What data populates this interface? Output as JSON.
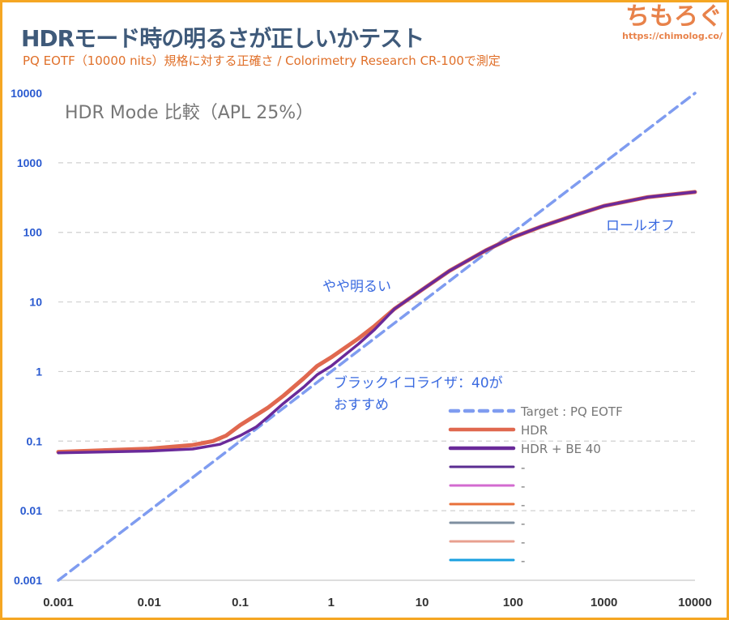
{
  "header": {
    "title": "HDRモード時の明るさが正しいかテスト",
    "subtitle": "PQ EOTF（10000 nits）規格に対する正確さ / Colorimetry Research CR-100で測定",
    "logo": "ちもろぐ",
    "url": "https://chimolog.co/"
  },
  "chart_data": {
    "type": "line",
    "title": "HDR Mode 比較（APL 25%）",
    "x_scale": "log",
    "y_scale": "log",
    "xlim": [
      0.001,
      10000
    ],
    "ylim": [
      0.001,
      10000
    ],
    "x_ticks": [
      "0.001",
      "0.01",
      "0.1",
      "1",
      "10",
      "100",
      "1000",
      "10000"
    ],
    "y_ticks": [
      "0.001",
      "0.01",
      "0.1",
      "1",
      "10",
      "100",
      "1000",
      "10000"
    ],
    "grid": "horizontal dashed",
    "legend_position": "bottom-right",
    "series": [
      {
        "name": "Target : PQ EOTF",
        "color": "#7f9cf0",
        "style": "dashed",
        "x": [
          0.001,
          10000
        ],
        "y": [
          0.001,
          10000
        ]
      },
      {
        "name": "HDR",
        "color": "#e0684f",
        "style": "solid",
        "x": [
          0.001,
          0.01,
          0.03,
          0.05,
          0.07,
          0.1,
          0.2,
          0.3,
          0.5,
          0.7,
          1,
          2,
          3,
          5,
          10,
          20,
          50,
          100,
          200,
          500,
          1000,
          3000,
          10000
        ],
        "y": [
          0.07,
          0.078,
          0.088,
          0.1,
          0.12,
          0.17,
          0.3,
          0.45,
          0.8,
          1.2,
          1.6,
          3,
          4.5,
          8,
          15,
          28,
          55,
          85,
          120,
          180,
          240,
          320,
          380
        ]
      },
      {
        "name": "HDR + BE 40",
        "color": "#6a2a9a",
        "style": "solid",
        "x": [
          0.001,
          0.01,
          0.03,
          0.06,
          0.1,
          0.15,
          0.2,
          0.3,
          0.5,
          0.7,
          1,
          2,
          3,
          5,
          10,
          20,
          50,
          100,
          200,
          500,
          1000,
          3000,
          10000
        ],
        "y": [
          0.068,
          0.072,
          0.077,
          0.09,
          0.12,
          0.16,
          0.22,
          0.35,
          0.6,
          0.9,
          1.2,
          2.5,
          4,
          8,
          15,
          28,
          55,
          85,
          120,
          180,
          240,
          320,
          380
        ]
      },
      {
        "name": "-",
        "color": "#5b2d91",
        "style": "solid",
        "x": [],
        "y": []
      },
      {
        "name": "-",
        "color": "#d36bd0",
        "style": "solid",
        "x": [],
        "y": []
      },
      {
        "name": "-",
        "color": "#e8703a",
        "style": "solid",
        "x": [],
        "y": []
      },
      {
        "name": "-",
        "color": "#7f8fa0",
        "style": "solid",
        "x": [],
        "y": []
      },
      {
        "name": "-",
        "color": "#e8a090",
        "style": "solid",
        "x": [],
        "y": []
      },
      {
        "name": "-",
        "color": "#1aa0e0",
        "style": "solid",
        "x": [],
        "y": []
      }
    ],
    "annotations": [
      {
        "text": "ロールオフ",
        "x": 1500,
        "y": 110
      },
      {
        "text": "やや明るい",
        "x": 0.8,
        "y": 20
      },
      {
        "text": "ブラックイコライザ：40が",
        "x": 1,
        "y": 1.2
      },
      {
        "text": "おすすめ",
        "x": 1,
        "y": 0.45
      }
    ]
  }
}
